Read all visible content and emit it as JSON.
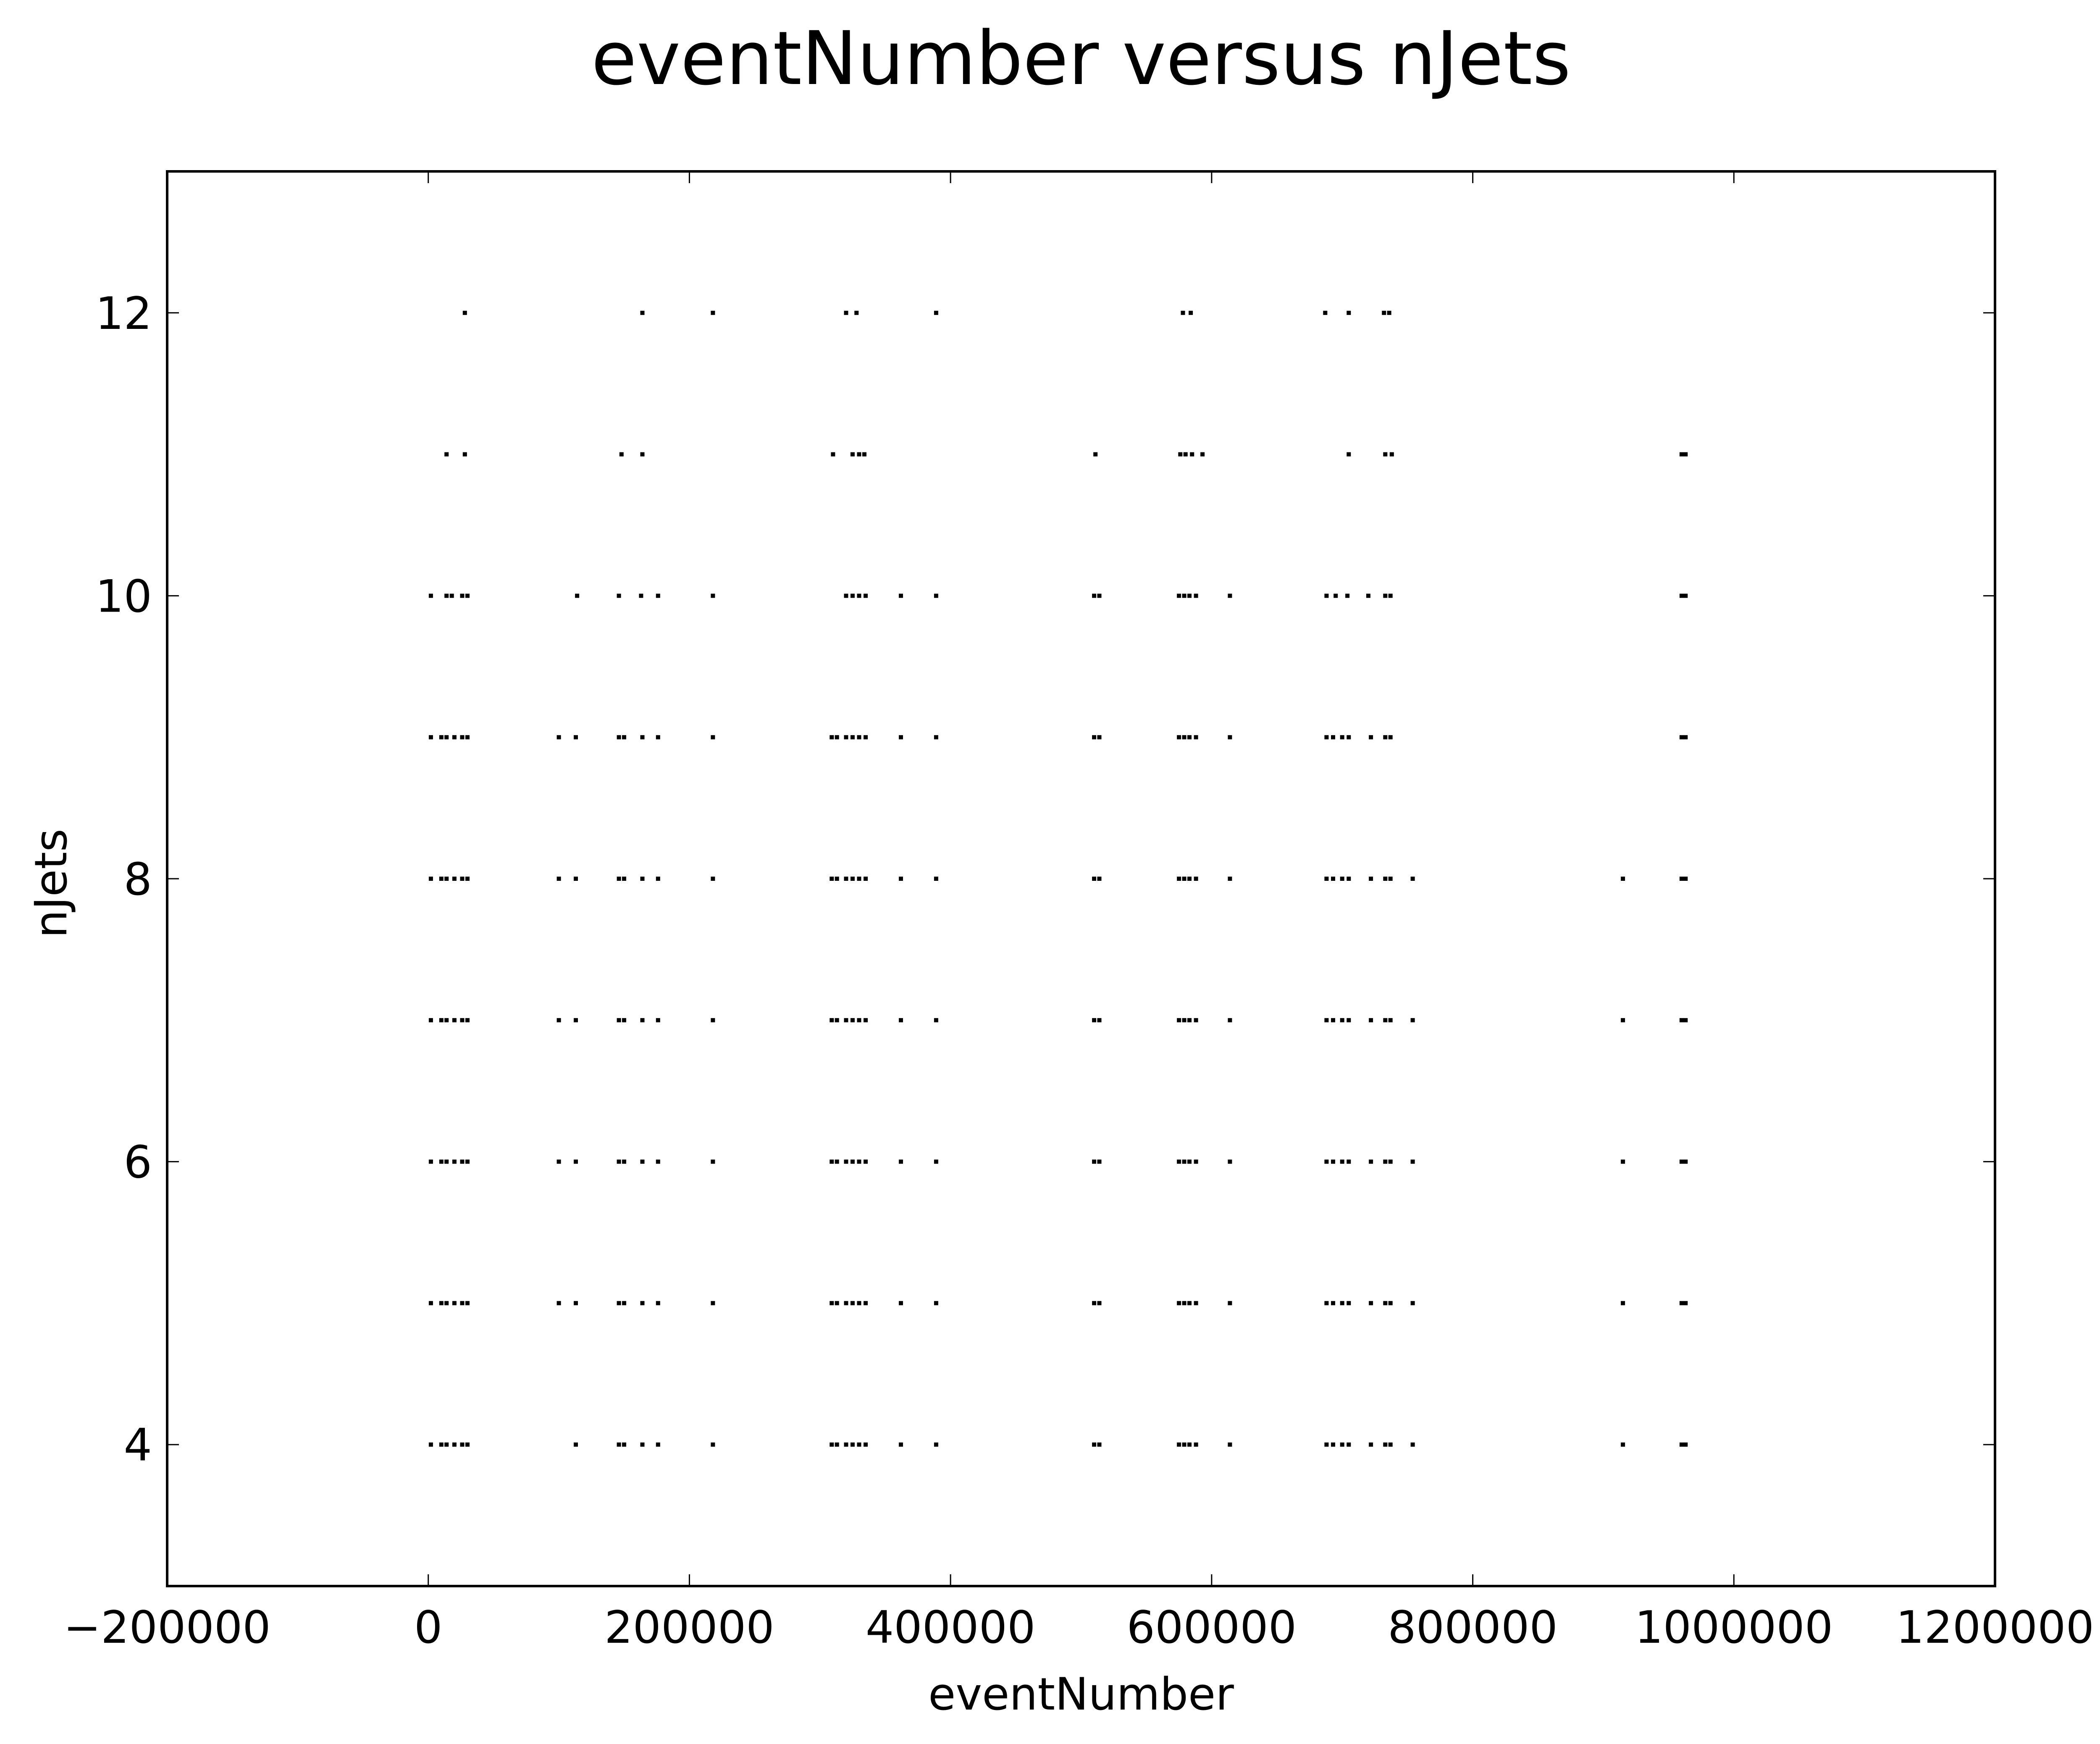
{
  "chart_data": {
    "type": "scatter",
    "title": "eventNumber versus nJets",
    "xlabel": "eventNumber",
    "ylabel": "nJets",
    "xlim": [
      -200000,
      1200000
    ],
    "ylim": [
      3,
      13
    ],
    "xticks": [
      -200000,
      0,
      200000,
      400000,
      600000,
      800000,
      1000000,
      1200000
    ],
    "xtick_labels": [
      "−200000",
      "0",
      "200000",
      "400000",
      "600000",
      "800000",
      "1000000",
      "1200000"
    ],
    "yticks": [
      4,
      6,
      8,
      10,
      12
    ],
    "ytick_labels": [
      "4",
      "6",
      "8",
      "10",
      "12"
    ],
    "grid": false,
    "marker_color": "#000000",
    "series": [
      {
        "values": [
          [
            28000,
            12
          ],
          [
            164000,
            12
          ],
          [
            218000,
            12
          ],
          [
            320000,
            12
          ],
          [
            328000,
            12
          ],
          [
            389000,
            12
          ],
          [
            578000,
            12
          ],
          [
            584000,
            12
          ],
          [
            687000,
            12
          ],
          [
            705000,
            12
          ],
          [
            732000,
            12
          ],
          [
            736000,
            12
          ],
          [
            14000,
            11
          ],
          [
            28000,
            11
          ],
          [
            148000,
            11
          ],
          [
            164000,
            11
          ],
          [
            310000,
            11
          ],
          [
            325000,
            11
          ],
          [
            330000,
            11
          ],
          [
            334000,
            11
          ],
          [
            511000,
            11
          ],
          [
            576000,
            11
          ],
          [
            580000,
            11
          ],
          [
            585000,
            11
          ],
          [
            593000,
            11
          ],
          [
            705000,
            11
          ],
          [
            733000,
            11
          ],
          [
            738000,
            11
          ],
          [
            960000,
            11
          ],
          [
            963000,
            11
          ],
          [
            2000,
            10
          ],
          [
            14000,
            10
          ],
          [
            18000,
            10
          ],
          [
            26000,
            10
          ],
          [
            30000,
            10
          ],
          [
            114000,
            10
          ],
          [
            146000,
            10
          ],
          [
            163000,
            10
          ],
          [
            176000,
            10
          ],
          [
            218000,
            10
          ],
          [
            320000,
            10
          ],
          [
            325000,
            10
          ],
          [
            330000,
            10
          ],
          [
            335000,
            10
          ],
          [
            362000,
            10
          ],
          [
            389000,
            10
          ],
          [
            510000,
            10
          ],
          [
            514000,
            10
          ],
          [
            575000,
            10
          ],
          [
            579000,
            10
          ],
          [
            583000,
            10
          ],
          [
            588000,
            10
          ],
          [
            614000,
            10
          ],
          [
            688000,
            10
          ],
          [
            695000,
            10
          ],
          [
            704000,
            10
          ],
          [
            720000,
            10
          ],
          [
            733000,
            10
          ],
          [
            737000,
            10
          ],
          [
            960000,
            10
          ],
          [
            963000,
            10
          ],
          [
            2000,
            9
          ],
          [
            10000,
            9
          ],
          [
            14000,
            9
          ],
          [
            20000,
            9
          ],
          [
            26000,
            9
          ],
          [
            30000,
            9
          ],
          [
            100000,
            9
          ],
          [
            113000,
            9
          ],
          [
            146000,
            9
          ],
          [
            150000,
            9
          ],
          [
            164000,
            9
          ],
          [
            176000,
            9
          ],
          [
            218000,
            9
          ],
          [
            309000,
            9
          ],
          [
            313000,
            9
          ],
          [
            320000,
            9
          ],
          [
            325000,
            9
          ],
          [
            330000,
            9
          ],
          [
            335000,
            9
          ],
          [
            362000,
            9
          ],
          [
            389000,
            9
          ],
          [
            510000,
            9
          ],
          [
            514000,
            9
          ],
          [
            575000,
            9
          ],
          [
            579000,
            9
          ],
          [
            583000,
            9
          ],
          [
            588000,
            9
          ],
          [
            614000,
            9
          ],
          [
            688000,
            9
          ],
          [
            693000,
            9
          ],
          [
            700000,
            9
          ],
          [
            705000,
            9
          ],
          [
            722000,
            9
          ],
          [
            733000,
            9
          ],
          [
            737000,
            9
          ],
          [
            960000,
            9
          ],
          [
            963000,
            9
          ],
          [
            2000,
            8
          ],
          [
            10000,
            8
          ],
          [
            14000,
            8
          ],
          [
            20000,
            8
          ],
          [
            26000,
            8
          ],
          [
            30000,
            8
          ],
          [
            100000,
            8
          ],
          [
            113000,
            8
          ],
          [
            146000,
            8
          ],
          [
            150000,
            8
          ],
          [
            164000,
            8
          ],
          [
            176000,
            8
          ],
          [
            218000,
            8
          ],
          [
            309000,
            8
          ],
          [
            313000,
            8
          ],
          [
            320000,
            8
          ],
          [
            325000,
            8
          ],
          [
            330000,
            8
          ],
          [
            335000,
            8
          ],
          [
            362000,
            8
          ],
          [
            389000,
            8
          ],
          [
            510000,
            8
          ],
          [
            514000,
            8
          ],
          [
            575000,
            8
          ],
          [
            579000,
            8
          ],
          [
            583000,
            8
          ],
          [
            588000,
            8
          ],
          [
            614000,
            8
          ],
          [
            688000,
            8
          ],
          [
            693000,
            8
          ],
          [
            700000,
            8
          ],
          [
            705000,
            8
          ],
          [
            722000,
            8
          ],
          [
            733000,
            8
          ],
          [
            737000,
            8
          ],
          [
            754000,
            8
          ],
          [
            915000,
            8
          ],
          [
            960000,
            8
          ],
          [
            963000,
            8
          ],
          [
            2000,
            7
          ],
          [
            10000,
            7
          ],
          [
            14000,
            7
          ],
          [
            20000,
            7
          ],
          [
            26000,
            7
          ],
          [
            30000,
            7
          ],
          [
            100000,
            7
          ],
          [
            113000,
            7
          ],
          [
            146000,
            7
          ],
          [
            150000,
            7
          ],
          [
            164000,
            7
          ],
          [
            176000,
            7
          ],
          [
            218000,
            7
          ],
          [
            309000,
            7
          ],
          [
            313000,
            7
          ],
          [
            320000,
            7
          ],
          [
            325000,
            7
          ],
          [
            330000,
            7
          ],
          [
            335000,
            7
          ],
          [
            362000,
            7
          ],
          [
            389000,
            7
          ],
          [
            510000,
            7
          ],
          [
            514000,
            7
          ],
          [
            575000,
            7
          ],
          [
            579000,
            7
          ],
          [
            583000,
            7
          ],
          [
            588000,
            7
          ],
          [
            614000,
            7
          ],
          [
            688000,
            7
          ],
          [
            693000,
            7
          ],
          [
            700000,
            7
          ],
          [
            705000,
            7
          ],
          [
            722000,
            7
          ],
          [
            733000,
            7
          ],
          [
            737000,
            7
          ],
          [
            754000,
            7
          ],
          [
            915000,
            7
          ],
          [
            960000,
            7
          ],
          [
            963000,
            7
          ],
          [
            2000,
            6
          ],
          [
            10000,
            6
          ],
          [
            14000,
            6
          ],
          [
            20000,
            6
          ],
          [
            26000,
            6
          ],
          [
            30000,
            6
          ],
          [
            100000,
            6
          ],
          [
            113000,
            6
          ],
          [
            146000,
            6
          ],
          [
            150000,
            6
          ],
          [
            164000,
            6
          ],
          [
            176000,
            6
          ],
          [
            218000,
            6
          ],
          [
            309000,
            6
          ],
          [
            313000,
            6
          ],
          [
            320000,
            6
          ],
          [
            325000,
            6
          ],
          [
            330000,
            6
          ],
          [
            335000,
            6
          ],
          [
            362000,
            6
          ],
          [
            389000,
            6
          ],
          [
            510000,
            6
          ],
          [
            514000,
            6
          ],
          [
            575000,
            6
          ],
          [
            579000,
            6
          ],
          [
            583000,
            6
          ],
          [
            588000,
            6
          ],
          [
            614000,
            6
          ],
          [
            688000,
            6
          ],
          [
            693000,
            6
          ],
          [
            700000,
            6
          ],
          [
            705000,
            6
          ],
          [
            722000,
            6
          ],
          [
            733000,
            6
          ],
          [
            737000,
            6
          ],
          [
            754000,
            6
          ],
          [
            915000,
            6
          ],
          [
            960000,
            6
          ],
          [
            963000,
            6
          ],
          [
            2000,
            5
          ],
          [
            10000,
            5
          ],
          [
            14000,
            5
          ],
          [
            20000,
            5
          ],
          [
            26000,
            5
          ],
          [
            30000,
            5
          ],
          [
            100000,
            5
          ],
          [
            113000,
            5
          ],
          [
            146000,
            5
          ],
          [
            150000,
            5
          ],
          [
            164000,
            5
          ],
          [
            176000,
            5
          ],
          [
            218000,
            5
          ],
          [
            309000,
            5
          ],
          [
            313000,
            5
          ],
          [
            320000,
            5
          ],
          [
            325000,
            5
          ],
          [
            330000,
            5
          ],
          [
            335000,
            5
          ],
          [
            362000,
            5
          ],
          [
            389000,
            5
          ],
          [
            510000,
            5
          ],
          [
            514000,
            5
          ],
          [
            575000,
            5
          ],
          [
            579000,
            5
          ],
          [
            583000,
            5
          ],
          [
            588000,
            5
          ],
          [
            614000,
            5
          ],
          [
            688000,
            5
          ],
          [
            693000,
            5
          ],
          [
            700000,
            5
          ],
          [
            705000,
            5
          ],
          [
            722000,
            5
          ],
          [
            733000,
            5
          ],
          [
            737000,
            5
          ],
          [
            754000,
            5
          ],
          [
            915000,
            5
          ],
          [
            960000,
            5
          ],
          [
            963000,
            5
          ],
          [
            2000,
            4
          ],
          [
            10000,
            4
          ],
          [
            14000,
            4
          ],
          [
            20000,
            4
          ],
          [
            26000,
            4
          ],
          [
            30000,
            4
          ],
          [
            113000,
            4
          ],
          [
            146000,
            4
          ],
          [
            150000,
            4
          ],
          [
            164000,
            4
          ],
          [
            176000,
            4
          ],
          [
            218000,
            4
          ],
          [
            309000,
            4
          ],
          [
            313000,
            4
          ],
          [
            320000,
            4
          ],
          [
            325000,
            4
          ],
          [
            330000,
            4
          ],
          [
            335000,
            4
          ],
          [
            362000,
            4
          ],
          [
            389000,
            4
          ],
          [
            510000,
            4
          ],
          [
            514000,
            4
          ],
          [
            575000,
            4
          ],
          [
            579000,
            4
          ],
          [
            583000,
            4
          ],
          [
            588000,
            4
          ],
          [
            614000,
            4
          ],
          [
            688000,
            4
          ],
          [
            693000,
            4
          ],
          [
            700000,
            4
          ],
          [
            705000,
            4
          ],
          [
            722000,
            4
          ],
          [
            733000,
            4
          ],
          [
            737000,
            4
          ],
          [
            754000,
            4
          ],
          [
            915000,
            4
          ],
          [
            960000,
            4
          ],
          [
            963000,
            4
          ]
        ]
      }
    ]
  }
}
